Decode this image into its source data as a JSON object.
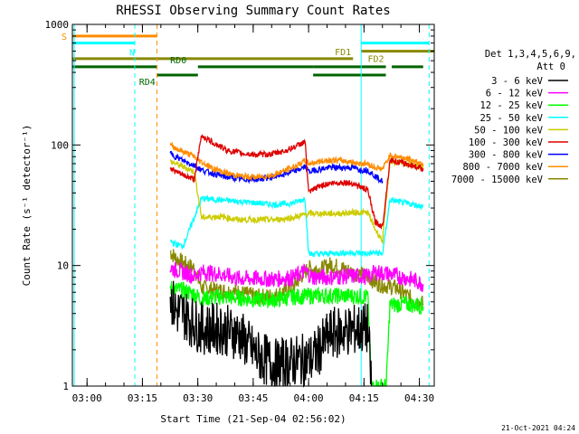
{
  "chart_data": {
    "type": "line",
    "title": "RHESSI Observing Summary Count Rates",
    "xlabel": "Start Time (21-Sep-04 02:56:02)",
    "ylabel": "Count Rate (s⁻¹ detector⁻¹)",
    "yscale": "log",
    "ylim": [
      1,
      1000
    ],
    "xlim_minutes": [
      0,
      98
    ],
    "x_ticks": [
      "03:00",
      "03:15",
      "03:30",
      "03:45",
      "04:00",
      "04:15",
      "04:30"
    ],
    "x_tick_minutes": [
      3.97,
      18.97,
      33.97,
      48.97,
      63.97,
      78.97,
      93.97
    ],
    "y_ticks": [
      "1",
      "10",
      "100",
      "1000"
    ],
    "y_tick_values": [
      1,
      10,
      100,
      1000
    ],
    "legend_header": [
      "Det 1,3,4,5,6,9,",
      "Att 0"
    ],
    "legend_position": "right",
    "series": [
      {
        "name": "3 - 6 keV",
        "color": "#000000",
        "points": [
          [
            26.5,
            5.5
          ],
          [
            28,
            4.2
          ],
          [
            30,
            4.0
          ],
          [
            33,
            3.3
          ],
          [
            35,
            3.0
          ],
          [
            40,
            3.0
          ],
          [
            45,
            2.7
          ],
          [
            50,
            1.8
          ],
          [
            55,
            1.5
          ],
          [
            60,
            1.6
          ],
          [
            65,
            1.7
          ],
          [
            70,
            2.7
          ],
          [
            75,
            2.9
          ],
          [
            80,
            3.0
          ],
          [
            81,
            1
          ]
        ]
      },
      {
        "name": "6 - 12 keV",
        "color": "#ff00ff",
        "points": [
          [
            26.5,
            9.5
          ],
          [
            30,
            8.8
          ],
          [
            33,
            8.2
          ],
          [
            35,
            8.8
          ],
          [
            40,
            8.5
          ],
          [
            45,
            7.8
          ],
          [
            50,
            7.8
          ],
          [
            55,
            7.7
          ],
          [
            60,
            8.0
          ],
          [
            63,
            9.0
          ],
          [
            65,
            8.0
          ],
          [
            70,
            8.0
          ],
          [
            75,
            8.2
          ],
          [
            80,
            8.1
          ],
          [
            82,
            8.8
          ],
          [
            85,
            8.6
          ],
          [
            88,
            8.2
          ],
          [
            93,
            7.5
          ],
          [
            95,
            7.0
          ]
        ]
      },
      {
        "name": "12 - 25 keV",
        "color": "#00ff00",
        "points": [
          [
            26.5,
            6.5
          ],
          [
            30,
            6.2
          ],
          [
            33,
            5.8
          ],
          [
            35,
            5.3
          ],
          [
            40,
            5.5
          ],
          [
            45,
            5.4
          ],
          [
            50,
            5.2
          ],
          [
            55,
            5.2
          ],
          [
            60,
            5.5
          ],
          [
            65,
            5.6
          ],
          [
            70,
            5.6
          ],
          [
            75,
            5.6
          ],
          [
            80,
            5.5
          ],
          [
            81,
            1
          ],
          [
            85,
            1
          ],
          [
            86,
            4.7
          ],
          [
            90,
            4.8
          ],
          [
            95,
            4.6
          ]
        ]
      },
      {
        "name": "25 - 50 keV",
        "color": "#00ffff",
        "points": [
          [
            26.5,
            16
          ],
          [
            28,
            15
          ],
          [
            30,
            14.5
          ],
          [
            35,
            36
          ],
          [
            40,
            35
          ],
          [
            45,
            34
          ],
          [
            50,
            33
          ],
          [
            55,
            32
          ],
          [
            60,
            33
          ],
          [
            63,
            36
          ],
          [
            64,
            12.5
          ],
          [
            68,
            12.5
          ],
          [
            72,
            12.7
          ],
          [
            76,
            12.8
          ],
          [
            80,
            12.5
          ],
          [
            82,
            12.8
          ],
          [
            84,
            12.5
          ],
          [
            86,
            35
          ],
          [
            90,
            33
          ],
          [
            95,
            31
          ]
        ]
      },
      {
        "name": "50 - 100 keV",
        "color": "#cccc00",
        "points": [
          [
            26.5,
            73
          ],
          [
            28,
            70
          ],
          [
            30,
            66
          ],
          [
            33,
            60
          ],
          [
            35,
            25
          ],
          [
            40,
            25.5
          ],
          [
            45,
            24
          ],
          [
            50,
            24
          ],
          [
            55,
            24
          ],
          [
            60,
            25
          ],
          [
            63,
            26.5
          ],
          [
            64,
            27
          ],
          [
            68,
            27
          ],
          [
            72,
            27
          ],
          [
            76,
            27.5
          ],
          [
            80,
            27.5
          ],
          [
            82,
            20
          ],
          [
            84,
            16
          ],
          [
            86,
            73
          ],
          [
            90,
            70
          ],
          [
            95,
            65
          ]
        ]
      },
      {
        "name": "100 - 300 keV",
        "color": "#dd0000",
        "points": [
          [
            26.5,
            65
          ],
          [
            28,
            60
          ],
          [
            30,
            56
          ],
          [
            33,
            52
          ],
          [
            35,
            120
          ],
          [
            38,
            105
          ],
          [
            42,
            90
          ],
          [
            46,
            85
          ],
          [
            50,
            83
          ],
          [
            54,
            84
          ],
          [
            58,
            90
          ],
          [
            61,
            99
          ],
          [
            63,
            107
          ],
          [
            64,
            40
          ],
          [
            67,
            46
          ],
          [
            70,
            48
          ],
          [
            73,
            49
          ],
          [
            76,
            48
          ],
          [
            78,
            45
          ],
          [
            80,
            42
          ],
          [
            82,
            23
          ],
          [
            84,
            21
          ],
          [
            86,
            75
          ],
          [
            90,
            70
          ],
          [
            95,
            64
          ]
        ]
      },
      {
        "name": "300 - 800 keV",
        "color": "#0000ff",
        "points": [
          [
            26.5,
            85
          ],
          [
            28,
            80
          ],
          [
            30,
            74
          ],
          [
            33,
            68
          ],
          [
            35,
            62
          ],
          [
            38,
            58
          ],
          [
            42,
            54
          ],
          [
            46,
            52
          ],
          [
            50,
            52
          ],
          [
            54,
            54
          ],
          [
            58,
            58
          ],
          [
            61,
            62
          ],
          [
            63,
            66
          ],
          [
            64,
            60
          ],
          [
            67,
            63
          ],
          [
            70,
            65
          ],
          [
            73,
            65
          ],
          [
            76,
            65
          ],
          [
            78,
            62
          ],
          [
            80,
            62
          ],
          [
            82,
            55
          ],
          [
            84,
            50
          ]
        ]
      },
      {
        "name": "800 - 7000 keV",
        "color": "#ff8c00",
        "points": [
          [
            26.5,
            100
          ],
          [
            28,
            94
          ],
          [
            30,
            88
          ],
          [
            33,
            80
          ],
          [
            35,
            72
          ],
          [
            38,
            64
          ],
          [
            42,
            58
          ],
          [
            46,
            55
          ],
          [
            50,
            54
          ],
          [
            54,
            56
          ],
          [
            58,
            62
          ],
          [
            61,
            68
          ],
          [
            63,
            74
          ],
          [
            64,
            70
          ],
          [
            67,
            73
          ],
          [
            70,
            75
          ],
          [
            73,
            74
          ],
          [
            76,
            72
          ],
          [
            78,
            70
          ],
          [
            80,
            70
          ],
          [
            82,
            65
          ],
          [
            84,
            63
          ],
          [
            86,
            82
          ],
          [
            90,
            78
          ],
          [
            95,
            70
          ]
        ]
      },
      {
        "name": "7000 - 15000 keV",
        "color": "#888800",
        "points": [
          [
            26.5,
            13
          ],
          [
            28,
            11.5
          ],
          [
            30,
            10.5
          ],
          [
            33,
            9.5
          ],
          [
            35,
            6.5
          ],
          [
            40,
            6.2
          ],
          [
            45,
            6.0
          ],
          [
            50,
            5.5
          ],
          [
            55,
            5.6
          ],
          [
            60,
            6.8
          ],
          [
            62,
            8.2
          ],
          [
            64,
            9.5
          ],
          [
            67,
            9.2
          ],
          [
            70,
            10.2
          ],
          [
            73,
            9.5
          ],
          [
            76,
            8.7
          ],
          [
            80,
            8.2
          ],
          [
            82,
            7.2
          ],
          [
            85,
            6.8
          ],
          [
            88,
            6.5
          ],
          [
            91,
            5.5
          ],
          [
            95,
            4.8
          ]
        ]
      }
    ],
    "annotations": {
      "vertical_lines": [
        {
          "x": 0.5,
          "color": "#00ffff",
          "style": "solid"
        },
        {
          "x": 16.9,
          "color": "#00ffff",
          "style": "dashed"
        },
        {
          "x": 22.9,
          "color": "#ff8c00",
          "style": "dashed"
        },
        {
          "x": 78.2,
          "color": "#00ffff",
          "style": "solid"
        },
        {
          "x": 96.6,
          "color": "#00ffff",
          "style": "dashed"
        }
      ],
      "bars": [
        {
          "label": "S",
          "color": "#ff8c00",
          "y": 800,
          "segments": [
            [
              0,
              22.9
            ]
          ]
        },
        {
          "label": "N",
          "color": "#00ffff",
          "y": 700,
          "segments": [
            [
              0,
              16.9
            ],
            [
              78.2,
              96.6
            ]
          ]
        },
        {
          "label": "FD1",
          "color": "#888800",
          "y": 520,
          "segments": [
            [
              0,
              76
            ]
          ]
        },
        {
          "label": "FD2",
          "color": "#888800",
          "y": 600,
          "segments": [
            [
              78.2,
              98
            ]
          ]
        },
        {
          "label": "RD0",
          "color": "#006400",
          "y": 445,
          "segments": [
            [
              0,
              22.9
            ],
            [
              34,
              65.2
            ],
            [
              65.2,
              84.9
            ],
            [
              86.5,
              95
            ]
          ]
        },
        {
          "label": "RD4",
          "color": "#006400",
          "y": 380,
          "segments": [
            [
              22.9,
              34
            ],
            [
              65.2,
              84.9
            ]
          ]
        }
      ]
    }
  },
  "footer_timestamp": "21-Oct-2021 04:24"
}
